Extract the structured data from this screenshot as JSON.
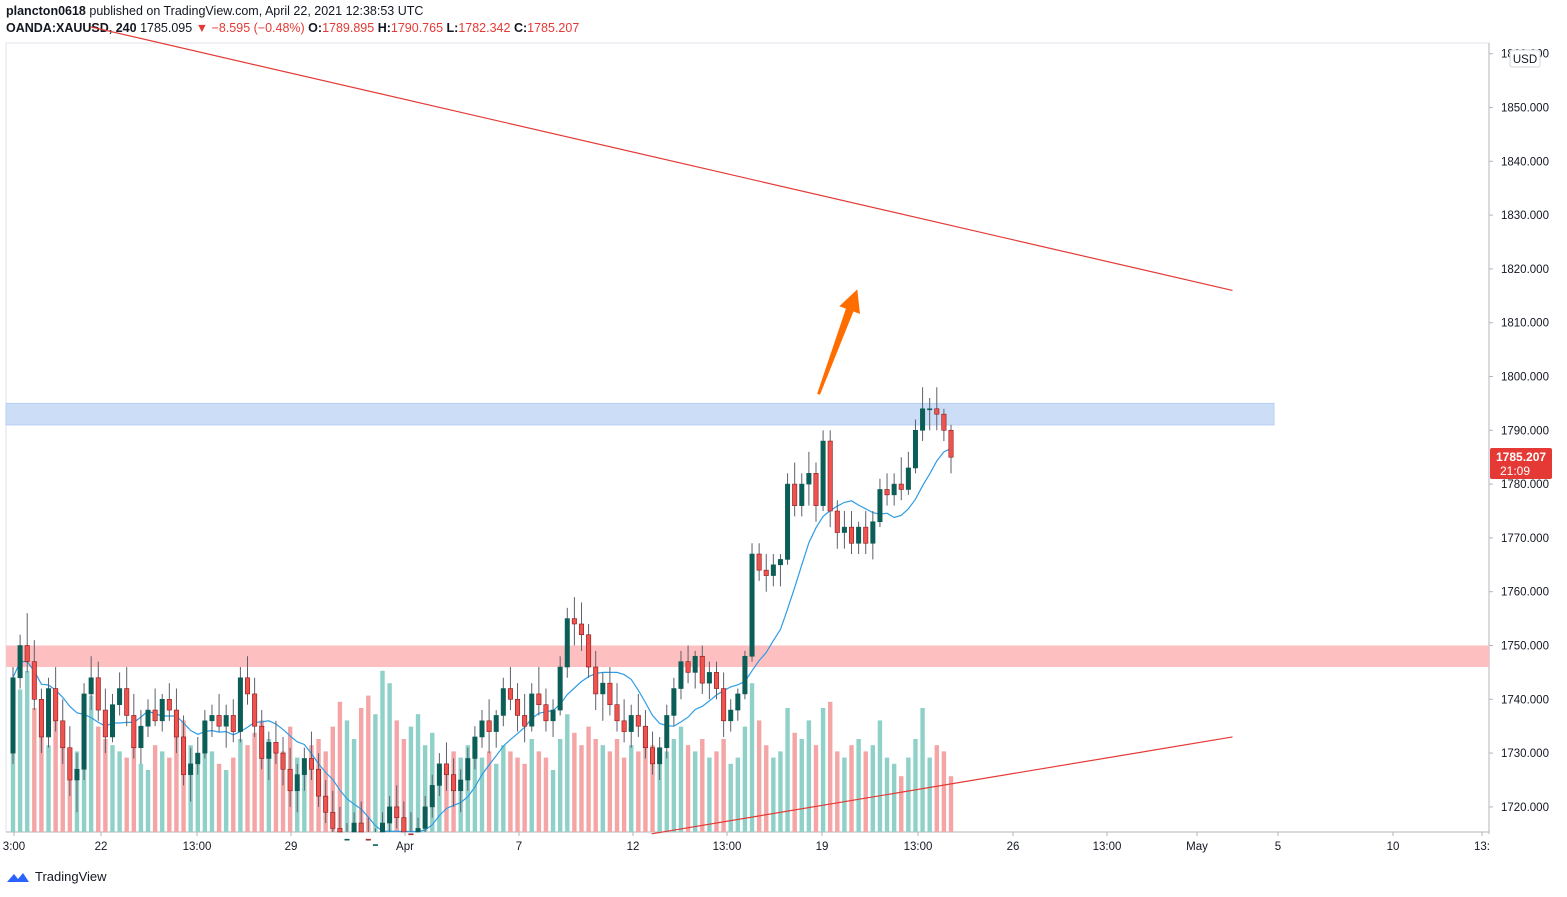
{
  "header": {
    "author": "plancton0618",
    "published": "published on TradingView.com, April 22, 2021 12:38:53 UTC",
    "symbol": "OANDA:XAUUSD, 240",
    "last": "1785.095",
    "change": "−8.595 (−0.48%)",
    "o_label": "O:",
    "o_value": "1789.895",
    "h_label": "H:",
    "h_value": "1790.765",
    "l_label": "L:",
    "l_value": "1782.342",
    "c_label": "C:",
    "c_value": "1785.207"
  },
  "price_axis": {
    "currency": "USD",
    "ticks": [
      "1860.000",
      "1850.000",
      "1840.000",
      "1830.000",
      "1820.000",
      "1810.000",
      "1800.000",
      "1790.000",
      "1780.000",
      "1770.000",
      "1760.000",
      "1750.000",
      "1740.000",
      "1730.000",
      "1720.000"
    ],
    "last_price": "1785.207",
    "countdown": "21:09"
  },
  "time_axis": {
    "ticks": [
      "3:00",
      "22",
      "13:00",
      "29",
      "Apr",
      "7",
      "12",
      "13:00",
      "19",
      "13:00",
      "26",
      "13:00",
      "May",
      "5",
      "10",
      "13:"
    ]
  },
  "footer": {
    "brand": "TradingView"
  },
  "colors": {
    "up": "#26a69a",
    "down": "#ef5350",
    "body_up": "#0b5e57",
    "body_down": "#8b1a1a",
    "vol_up": "#8fd1c9",
    "vol_down": "#f4a5a5",
    "ma": "#2e9ce6",
    "resistance_zone": "#c9dcf7",
    "support_zone": "#fdbcbc",
    "trendline": "#e53935",
    "arrow": "#ff6d00"
  },
  "chart_data": {
    "type": "candlestick",
    "symbol": "OANDA:XAUUSD",
    "interval": "240",
    "ylim": [
      1715,
      1866
    ],
    "zones": [
      {
        "from": 1791,
        "to": 1795
      },
      {
        "from": 1746,
        "to": 1750
      }
    ],
    "trendlines": [
      {
        "from": {
          "date": "2021-03-16",
          "price": 1865
        },
        "to": {
          "date": "2021-05-14",
          "price": 1816
        }
      },
      {
        "from": {
          "date": "2021-04-14",
          "price": 1715
        },
        "to": {
          "date": "2021-05-14",
          "price": 1733
        }
      }
    ],
    "arrow": {
      "from": {
        "date": "2021-04-22",
        "price": 1798
      },
      "to": {
        "date": "2021-04-24",
        "price": 1816
      }
    },
    "candles": [
      [
        1730,
        1746,
        1728,
        1744
      ],
      [
        1744,
        1752,
        1742,
        1750
      ],
      [
        1750,
        1756,
        1745,
        1747
      ],
      [
        1747,
        1751,
        1738,
        1740
      ],
      [
        1740,
        1742,
        1730,
        1733
      ],
      [
        1733,
        1744,
        1731,
        1742
      ],
      [
        1742,
        1746,
        1734,
        1736
      ],
      [
        1736,
        1740,
        1728,
        1731
      ],
      [
        1731,
        1735,
        1722,
        1725
      ],
      [
        1725,
        1730,
        1719,
        1727
      ],
      [
        1727,
        1743,
        1725,
        1741
      ],
      [
        1741,
        1748,
        1738,
        1744
      ],
      [
        1744,
        1747,
        1736,
        1738
      ],
      [
        1738,
        1742,
        1730,
        1733
      ],
      [
        1733,
        1741,
        1732,
        1739
      ],
      [
        1739,
        1745,
        1737,
        1742
      ],
      [
        1742,
        1746,
        1735,
        1737
      ],
      [
        1737,
        1741,
        1729,
        1731
      ],
      [
        1731,
        1738,
        1728,
        1735
      ],
      [
        1735,
        1740,
        1733,
        1738
      ],
      [
        1738,
        1742,
        1735,
        1736
      ],
      [
        1736,
        1741,
        1734,
        1740
      ],
      [
        1740,
        1743,
        1736,
        1738
      ],
      [
        1738,
        1742,
        1730,
        1733
      ],
      [
        1733,
        1737,
        1724,
        1726
      ],
      [
        1726,
        1731,
        1721,
        1728
      ],
      [
        1728,
        1733,
        1726,
        1730
      ],
      [
        1730,
        1738,
        1729,
        1736
      ],
      [
        1736,
        1739,
        1733,
        1737
      ],
      [
        1737,
        1741,
        1734,
        1735
      ],
      [
        1735,
        1739,
        1731,
        1737
      ],
      [
        1737,
        1740,
        1732,
        1734
      ],
      [
        1734,
        1746,
        1732,
        1744
      ],
      [
        1744,
        1748,
        1739,
        1741
      ],
      [
        1741,
        1744,
        1733,
        1735
      ],
      [
        1735,
        1738,
        1727,
        1729
      ],
      [
        1729,
        1734,
        1725,
        1732
      ],
      [
        1732,
        1736,
        1728,
        1730
      ],
      [
        1730,
        1733,
        1724,
        1727
      ],
      [
        1727,
        1731,
        1720,
        1723
      ],
      [
        1723,
        1728,
        1719,
        1726
      ],
      [
        1726,
        1731,
        1723,
        1729
      ],
      [
        1729,
        1734,
        1725,
        1727
      ],
      [
        1727,
        1730,
        1720,
        1722
      ],
      [
        1722,
        1725,
        1717,
        1719
      ],
      [
        1719,
        1723,
        1713,
        1716
      ],
      [
        1716,
        1720,
        1709,
        1712
      ],
      [
        1712,
        1717,
        1708,
        1714
      ],
      [
        1714,
        1719,
        1711,
        1717
      ],
      [
        1717,
        1721,
        1712,
        1714
      ],
      [
        1714,
        1718,
        1709,
        1711
      ],
      [
        1711,
        1716,
        1708,
        1713
      ],
      [
        1713,
        1719,
        1711,
        1717
      ],
      [
        1717,
        1722,
        1714,
        1720
      ],
      [
        1720,
        1724,
        1716,
        1718
      ],
      [
        1718,
        1721,
        1712,
        1715
      ],
      [
        1715,
        1719,
        1710,
        1713
      ],
      [
        1713,
        1718,
        1711,
        1716
      ],
      [
        1716,
        1722,
        1714,
        1720
      ],
      [
        1720,
        1726,
        1718,
        1724
      ],
      [
        1724,
        1730,
        1722,
        1728
      ],
      [
        1728,
        1732,
        1723,
        1726
      ],
      [
        1726,
        1729,
        1720,
        1723
      ],
      [
        1723,
        1727,
        1719,
        1725
      ],
      [
        1725,
        1731,
        1723,
        1729
      ],
      [
        1729,
        1735,
        1727,
        1733
      ],
      [
        1733,
        1738,
        1731,
        1736
      ],
      [
        1736,
        1740,
        1730,
        1734
      ],
      [
        1734,
        1738,
        1731,
        1737
      ],
      [
        1737,
        1744,
        1735,
        1742
      ],
      [
        1742,
        1746,
        1738,
        1740
      ],
      [
        1740,
        1743,
        1734,
        1737
      ],
      [
        1737,
        1741,
        1732,
        1735
      ],
      [
        1735,
        1743,
        1734,
        1741
      ],
      [
        1741,
        1746,
        1737,
        1739
      ],
      [
        1739,
        1742,
        1734,
        1736
      ],
      [
        1736,
        1740,
        1733,
        1738
      ],
      [
        1738,
        1748,
        1737,
        1746
      ],
      [
        1746,
        1757,
        1744,
        1755
      ],
      [
        1755,
        1759,
        1750,
        1754
      ],
      [
        1754,
        1758,
        1749,
        1752
      ],
      [
        1752,
        1754,
        1744,
        1746
      ],
      [
        1746,
        1749,
        1738,
        1741
      ],
      [
        1741,
        1745,
        1736,
        1743
      ],
      [
        1743,
        1746,
        1737,
        1739
      ],
      [
        1739,
        1743,
        1734,
        1736
      ],
      [
        1736,
        1740,
        1732,
        1734
      ],
      [
        1734,
        1739,
        1731,
        1737
      ],
      [
        1737,
        1741,
        1733,
        1735
      ],
      [
        1735,
        1738,
        1729,
        1731
      ],
      [
        1731,
        1734,
        1726,
        1728
      ],
      [
        1728,
        1733,
        1725,
        1731
      ],
      [
        1731,
        1739,
        1729,
        1737
      ],
      [
        1737,
        1744,
        1735,
        1742
      ],
      [
        1742,
        1749,
        1740,
        1747
      ],
      [
        1747,
        1750,
        1743,
        1745
      ],
      [
        1745,
        1749,
        1742,
        1748
      ],
      [
        1748,
        1750,
        1741,
        1743
      ],
      [
        1743,
        1747,
        1740,
        1745
      ],
      [
        1745,
        1747,
        1740,
        1742
      ],
      [
        1742,
        1745,
        1733,
        1736
      ],
      [
        1736,
        1740,
        1734,
        1738
      ],
      [
        1738,
        1742,
        1736,
        1741
      ],
      [
        1741,
        1749,
        1740,
        1748
      ],
      [
        1748,
        1769,
        1747,
        1767
      ],
      [
        1767,
        1769,
        1762,
        1764
      ],
      [
        1764,
        1767,
        1760,
        1763
      ],
      [
        1763,
        1767,
        1761,
        1765
      ],
      [
        1765,
        1767,
        1761,
        1766
      ],
      [
        1766,
        1782,
        1765,
        1780
      ],
      [
        1780,
        1784,
        1774,
        1776
      ],
      [
        1776,
        1782,
        1774,
        1780
      ],
      [
        1780,
        1786,
        1776,
        1782
      ],
      [
        1782,
        1784,
        1773,
        1776
      ],
      [
        1776,
        1790,
        1775,
        1788
      ],
      [
        1788,
        1790,
        1772,
        1775
      ],
      [
        1775,
        1777,
        1768,
        1771
      ],
      [
        1771,
        1775,
        1768,
        1772
      ],
      [
        1772,
        1775,
        1767,
        1769
      ],
      [
        1769,
        1773,
        1767,
        1772
      ],
      [
        1772,
        1775,
        1767,
        1769
      ],
      [
        1769,
        1775,
        1766,
        1773
      ],
      [
        1773,
        1781,
        1772,
        1779
      ],
      [
        1779,
        1782,
        1776,
        1778
      ],
      [
        1778,
        1782,
        1776,
        1780
      ],
      [
        1780,
        1785,
        1777,
        1779
      ],
      [
        1779,
        1786,
        1778,
        1783
      ],
      [
        1783,
        1792,
        1782,
        1790
      ],
      [
        1790,
        1798,
        1788,
        1794
      ],
      [
        1794,
        1796,
        1790,
        1794
      ],
      [
        1794,
        1798,
        1790,
        1793
      ],
      [
        1793,
        1794,
        1788,
        1790
      ],
      [
        1790,
        1791,
        1782,
        1785
      ]
    ],
    "volume": [
      [
        30,
        "u"
      ],
      [
        46,
        "u"
      ],
      [
        52,
        "u"
      ],
      [
        40,
        "d"
      ],
      [
        35,
        "d"
      ],
      [
        28,
        "u"
      ],
      [
        38,
        "d"
      ],
      [
        32,
        "d"
      ],
      [
        24,
        "d"
      ],
      [
        26,
        "u"
      ],
      [
        38,
        "u"
      ],
      [
        44,
        "u"
      ],
      [
        34,
        "d"
      ],
      [
        30,
        "d"
      ],
      [
        28,
        "u"
      ],
      [
        26,
        "u"
      ],
      [
        24,
        "d"
      ],
      [
        30,
        "d"
      ],
      [
        22,
        "u"
      ],
      [
        20,
        "u"
      ],
      [
        28,
        "d"
      ],
      [
        26,
        "u"
      ],
      [
        24,
        "d"
      ],
      [
        32,
        "d"
      ],
      [
        36,
        "d"
      ],
      [
        28,
        "u"
      ],
      [
        24,
        "u"
      ],
      [
        30,
        "u"
      ],
      [
        26,
        "u"
      ],
      [
        22,
        "d"
      ],
      [
        20,
        "u"
      ],
      [
        24,
        "d"
      ],
      [
        30,
        "u"
      ],
      [
        28,
        "d"
      ],
      [
        32,
        "d"
      ],
      [
        36,
        "d"
      ],
      [
        30,
        "u"
      ],
      [
        28,
        "d"
      ],
      [
        26,
        "d"
      ],
      [
        34,
        "d"
      ],
      [
        24,
        "u"
      ],
      [
        22,
        "u"
      ],
      [
        28,
        "d"
      ],
      [
        30,
        "d"
      ],
      [
        26,
        "d"
      ],
      [
        34,
        "d"
      ],
      [
        42,
        "d"
      ],
      [
        36,
        "u"
      ],
      [
        30,
        "u"
      ],
      [
        40,
        "d"
      ],
      [
        44,
        "d"
      ],
      [
        38,
        "u"
      ],
      [
        52,
        "u"
      ],
      [
        48,
        "u"
      ],
      [
        36,
        "d"
      ],
      [
        30,
        "d"
      ],
      [
        34,
        "u"
      ],
      [
        38,
        "u"
      ],
      [
        28,
        "u"
      ],
      [
        32,
        "u"
      ],
      [
        22,
        "u"
      ],
      [
        20,
        "d"
      ],
      [
        26,
        "d"
      ],
      [
        24,
        "u"
      ],
      [
        28,
        "u"
      ],
      [
        30,
        "u"
      ],
      [
        24,
        "u"
      ],
      [
        26,
        "d"
      ],
      [
        22,
        "u"
      ],
      [
        28,
        "u"
      ],
      [
        26,
        "d"
      ],
      [
        24,
        "d"
      ],
      [
        22,
        "d"
      ],
      [
        30,
        "u"
      ],
      [
        26,
        "d"
      ],
      [
        24,
        "d"
      ],
      [
        20,
        "u"
      ],
      [
        30,
        "u"
      ],
      [
        38,
        "u"
      ],
      [
        32,
        "d"
      ],
      [
        28,
        "d"
      ],
      [
        34,
        "d"
      ],
      [
        30,
        "d"
      ],
      [
        28,
        "u"
      ],
      [
        26,
        "d"
      ],
      [
        30,
        "d"
      ],
      [
        24,
        "d"
      ],
      [
        28,
        "u"
      ],
      [
        26,
        "d"
      ],
      [
        30,
        "d"
      ],
      [
        28,
        "d"
      ],
      [
        22,
        "u"
      ],
      [
        26,
        "u"
      ],
      [
        30,
        "u"
      ],
      [
        34,
        "u"
      ],
      [
        28,
        "d"
      ],
      [
        26,
        "u"
      ],
      [
        30,
        "d"
      ],
      [
        24,
        "u"
      ],
      [
        26,
        "d"
      ],
      [
        30,
        "d"
      ],
      [
        22,
        "u"
      ],
      [
        24,
        "u"
      ],
      [
        34,
        "u"
      ],
      [
        48,
        "u"
      ],
      [
        36,
        "d"
      ],
      [
        28,
        "d"
      ],
      [
        24,
        "u"
      ],
      [
        26,
        "u"
      ],
      [
        40,
        "u"
      ],
      [
        32,
        "d"
      ],
      [
        30,
        "u"
      ],
      [
        36,
        "u"
      ],
      [
        28,
        "d"
      ],
      [
        40,
        "u"
      ],
      [
        42,
        "d"
      ],
      [
        26,
        "d"
      ],
      [
        24,
        "u"
      ],
      [
        28,
        "d"
      ],
      [
        30,
        "u"
      ],
      [
        26,
        "d"
      ],
      [
        28,
        "u"
      ],
      [
        36,
        "u"
      ],
      [
        24,
        "u"
      ],
      [
        22,
        "u"
      ],
      [
        18,
        "d"
      ],
      [
        24,
        "u"
      ],
      [
        30,
        "u"
      ],
      [
        40,
        "u"
      ],
      [
        24,
        "u"
      ],
      [
        28,
        "d"
      ],
      [
        26,
        "d"
      ],
      [
        18,
        "d"
      ]
    ]
  }
}
